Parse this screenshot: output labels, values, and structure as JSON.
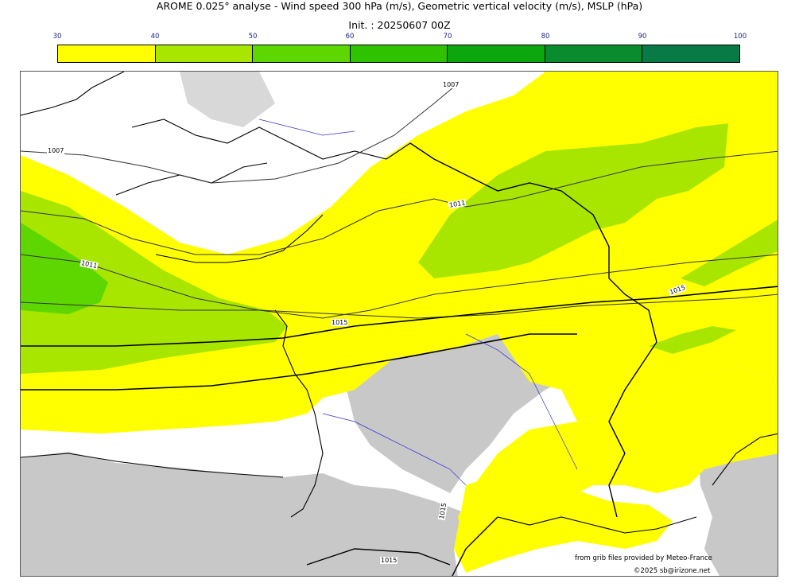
{
  "header": {
    "title": "AROME 0.025° analyse - Wind speed 300 hPa (m/s), Geometric vertical velocity (m/s), MSLP (hPa)",
    "init": "Init. : 20250607 00Z"
  },
  "colorbar": {
    "ticks": [
      "30",
      "40",
      "50",
      "60",
      "70",
      "80",
      "90",
      "100"
    ],
    "colors": [
      "#ffff00",
      "#a8e600",
      "#5ed600",
      "#2ec200",
      "#0ca60e",
      "#0a8c2e",
      "#087a45"
    ]
  },
  "map": {
    "isobar_labels": [
      "1007",
      "1007",
      "1011",
      "1011",
      "1015",
      "1015",
      "1015",
      "1015"
    ],
    "colors": {
      "wind_30_40": "#ffff00",
      "wind_40_50": "#a8e600",
      "wind_50_60": "#5ed600",
      "vertical_velocity_grey": "#c8c8c8",
      "rivers": "#3333cc",
      "coast": "#000000"
    }
  },
  "credits": {
    "source": "from grib files provided by Meteo-France",
    "copyright": "©2025 sb@irizone.net"
  }
}
